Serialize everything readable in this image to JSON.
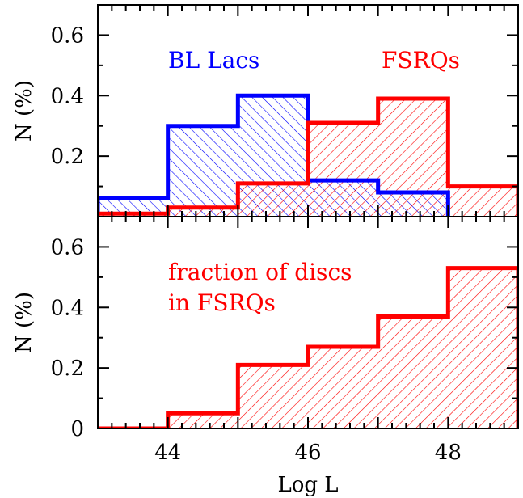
{
  "chart_data": [
    {
      "type": "histogram",
      "panel": "top",
      "ylabel": "N (%)",
      "ylim": [
        0,
        0.7
      ],
      "yticks": [
        {
          "value": 0.2,
          "label": "0.2"
        },
        {
          "value": 0.4,
          "label": "0.4"
        },
        {
          "value": 0.6,
          "label": "0.6"
        }
      ],
      "xlim": [
        43,
        49
      ],
      "bin_edges": [
        43,
        44,
        45,
        46,
        47,
        48,
        49
      ],
      "series": [
        {
          "name": "BL Lacs",
          "color": "#0000ff",
          "hatch": "diagonal-down",
          "values": [
            0.06,
            0.3,
            0.4,
            0.12,
            0.08,
            null
          ]
        },
        {
          "name": "FSRQs",
          "color": "#ff0000",
          "hatch": "diagonal-up",
          "values": [
            0.01,
            0.03,
            0.11,
            0.31,
            0.39,
            0.1
          ]
        }
      ],
      "legend_placement": "inside-top"
    },
    {
      "type": "histogram",
      "panel": "bottom",
      "ylabel": "N (%)",
      "xlabel": "Log L",
      "ylim": [
        0,
        0.7
      ],
      "yticks": [
        {
          "value": 0,
          "label": "0"
        },
        {
          "value": 0.2,
          "label": "0.2"
        },
        {
          "value": 0.4,
          "label": "0.4"
        },
        {
          "value": 0.6,
          "label": "0.6"
        }
      ],
      "xlim": [
        43,
        49
      ],
      "xticks": [
        {
          "value": 44,
          "label": "44"
        },
        {
          "value": 46,
          "label": "46"
        },
        {
          "value": 48,
          "label": "48"
        }
      ],
      "bin_edges": [
        43,
        44,
        45,
        46,
        47,
        48,
        49
      ],
      "series": [
        {
          "name": "fraction of discs in FSRQs",
          "color": "#ff0000",
          "hatch": "diagonal-up",
          "values": [
            0.0,
            0.05,
            0.21,
            0.27,
            0.37,
            0.53
          ]
        }
      ],
      "annotation": [
        "fraction of discs",
        "in FSRQs"
      ]
    }
  ]
}
